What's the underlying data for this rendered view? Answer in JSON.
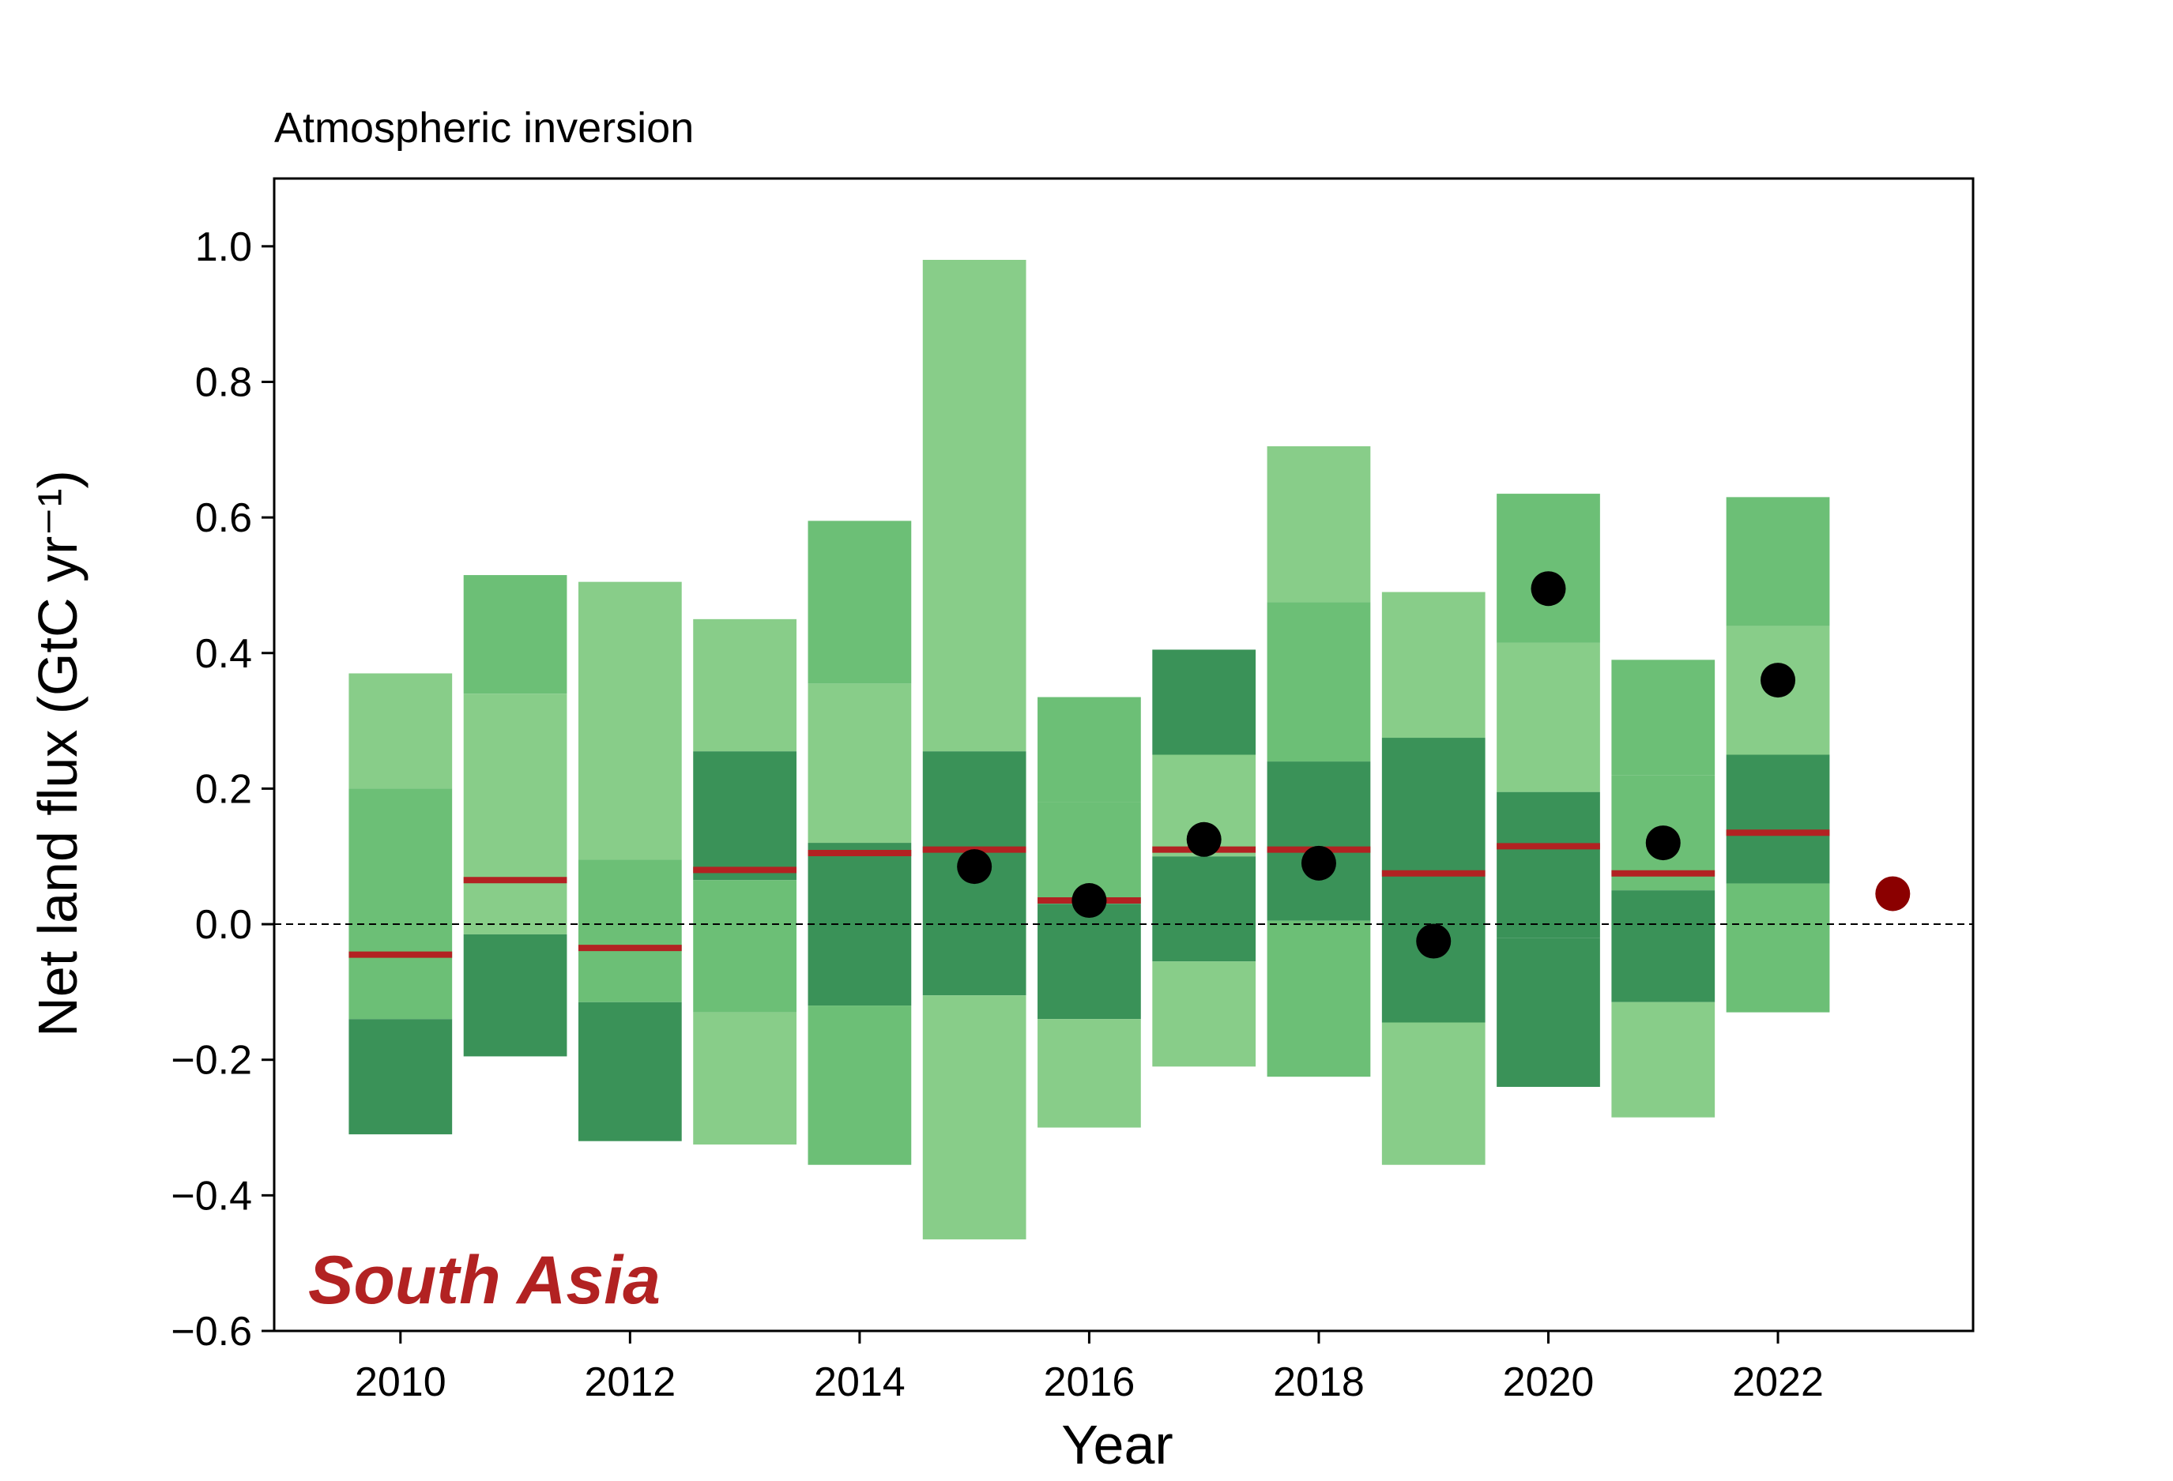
{
  "chart_data": {
    "type": "bar",
    "title": "Atmospheric inversion",
    "xlabel": "Year",
    "ylabel": "Net land flux (GtC yr⁻¹)",
    "region_label": "South Asia",
    "xlim": [
      2008.9,
      2023.7
    ],
    "ylim": [
      -0.6,
      1.1
    ],
    "x_ticks": [
      2010,
      2012,
      2014,
      2016,
      2018,
      2020,
      2022
    ],
    "y_ticks": [
      -0.6,
      -0.4,
      -0.2,
      0.0,
      0.2,
      0.4,
      0.6,
      0.8,
      1.0
    ],
    "zero_line": true,
    "grid": false,
    "bar_width_years": 0.9,
    "colors": {
      "light": "#88cd89",
      "medium": "#6cbf76",
      "dark": "#3a9258",
      "median": "#b22222",
      "point": "#000000",
      "point_latest": "#8b0000",
      "region_label": "#b22222"
    },
    "years": [
      {
        "year": 2010,
        "segments": [
          {
            "y0": 0.2,
            "y1": 0.37,
            "shade": "light"
          },
          {
            "y0": -0.14,
            "y1": 0.2,
            "shade": "medium"
          },
          {
            "y0": -0.31,
            "y1": -0.14,
            "shade": "dark"
          }
        ],
        "median": -0.045,
        "point": null
      },
      {
        "year": 2011,
        "segments": [
          {
            "y0": 0.34,
            "y1": 0.515,
            "shade": "medium"
          },
          {
            "y0": -0.015,
            "y1": 0.34,
            "shade": "light"
          },
          {
            "y0": -0.195,
            "y1": -0.015,
            "shade": "dark"
          }
        ],
        "median": 0.065,
        "point": null
      },
      {
        "year": 2012,
        "segments": [
          {
            "y0": 0.095,
            "y1": 0.505,
            "shade": "light"
          },
          {
            "y0": -0.115,
            "y1": 0.095,
            "shade": "medium"
          },
          {
            "y0": -0.32,
            "y1": -0.115,
            "shade": "dark"
          }
        ],
        "median": -0.035,
        "point": null
      },
      {
        "year": 2013,
        "segments": [
          {
            "y0": 0.255,
            "y1": 0.45,
            "shade": "light"
          },
          {
            "y0": 0.065,
            "y1": 0.255,
            "shade": "dark"
          },
          {
            "y0": -0.13,
            "y1": 0.065,
            "shade": "medium"
          },
          {
            "y0": -0.325,
            "y1": -0.13,
            "shade": "light"
          }
        ],
        "median": 0.08,
        "point": null
      },
      {
        "year": 2014,
        "segments": [
          {
            "y0": 0.355,
            "y1": 0.595,
            "shade": "medium"
          },
          {
            "y0": 0.12,
            "y1": 0.355,
            "shade": "light"
          },
          {
            "y0": -0.12,
            "y1": 0.12,
            "shade": "dark"
          },
          {
            "y0": -0.355,
            "y1": -0.12,
            "shade": "medium"
          }
        ],
        "median": 0.105,
        "point": null
      },
      {
        "year": 2015,
        "segments": [
          {
            "y0": 0.255,
            "y1": 0.98,
            "shade": "light"
          },
          {
            "y0": -0.105,
            "y1": 0.255,
            "shade": "dark"
          },
          {
            "y0": -0.465,
            "y1": -0.105,
            "shade": "light"
          }
        ],
        "median": 0.11,
        "point": 0.085
      },
      {
        "year": 2016,
        "segments": [
          {
            "y0": 0.18,
            "y1": 0.335,
            "shade": "medium"
          },
          {
            "y0": 0.03,
            "y1": 0.18,
            "shade": "medium"
          },
          {
            "y0": -0.14,
            "y1": 0.03,
            "shade": "dark"
          },
          {
            "y0": -0.3,
            "y1": -0.14,
            "shade": "light"
          }
        ],
        "median": 0.035,
        "point": 0.035
      },
      {
        "year": 2017,
        "segments": [
          {
            "y0": 0.25,
            "y1": 0.405,
            "shade": "dark"
          },
          {
            "y0": 0.1,
            "y1": 0.25,
            "shade": "light"
          },
          {
            "y0": -0.055,
            "y1": 0.1,
            "shade": "dark"
          },
          {
            "y0": -0.21,
            "y1": -0.055,
            "shade": "light"
          }
        ],
        "median": 0.11,
        "point": 0.125
      },
      {
        "year": 2018,
        "segments": [
          {
            "y0": 0.475,
            "y1": 0.705,
            "shade": "light"
          },
          {
            "y0": 0.24,
            "y1": 0.475,
            "shade": "medium"
          },
          {
            "y0": 0.005,
            "y1": 0.24,
            "shade": "dark"
          },
          {
            "y0": -0.225,
            "y1": 0.005,
            "shade": "medium"
          }
        ],
        "median": 0.11,
        "point": 0.09
      },
      {
        "year": 2019,
        "segments": [
          {
            "y0": 0.275,
            "y1": 0.49,
            "shade": "light"
          },
          {
            "y0": -0.145,
            "y1": 0.275,
            "shade": "dark"
          },
          {
            "y0": -0.355,
            "y1": -0.145,
            "shade": "light"
          }
        ],
        "median": 0.075,
        "point": -0.025
      },
      {
        "year": 2020,
        "segments": [
          {
            "y0": 0.415,
            "y1": 0.635,
            "shade": "medium"
          },
          {
            "y0": 0.195,
            "y1": 0.415,
            "shade": "light"
          },
          {
            "y0": -0.02,
            "y1": 0.195,
            "shade": "dark"
          },
          {
            "y0": -0.24,
            "y1": -0.02,
            "shade": "dark"
          }
        ],
        "median": 0.115,
        "point": 0.495
      },
      {
        "year": 2021,
        "segments": [
          {
            "y0": 0.22,
            "y1": 0.39,
            "shade": "medium"
          },
          {
            "y0": 0.05,
            "y1": 0.22,
            "shade": "medium"
          },
          {
            "y0": -0.115,
            "y1": 0.05,
            "shade": "dark"
          },
          {
            "y0": -0.285,
            "y1": -0.115,
            "shade": "light"
          }
        ],
        "median": 0.075,
        "point": 0.12
      },
      {
        "year": 2022,
        "segments": [
          {
            "y0": 0.44,
            "y1": 0.63,
            "shade": "medium"
          },
          {
            "y0": 0.25,
            "y1": 0.44,
            "shade": "light"
          },
          {
            "y0": 0.06,
            "y1": 0.25,
            "shade": "dark"
          },
          {
            "y0": -0.13,
            "y1": 0.06,
            "shade": "medium"
          }
        ],
        "median": 0.135,
        "point": 0.36
      }
    ],
    "latest_point": {
      "year": 2023,
      "value": 0.045
    }
  }
}
